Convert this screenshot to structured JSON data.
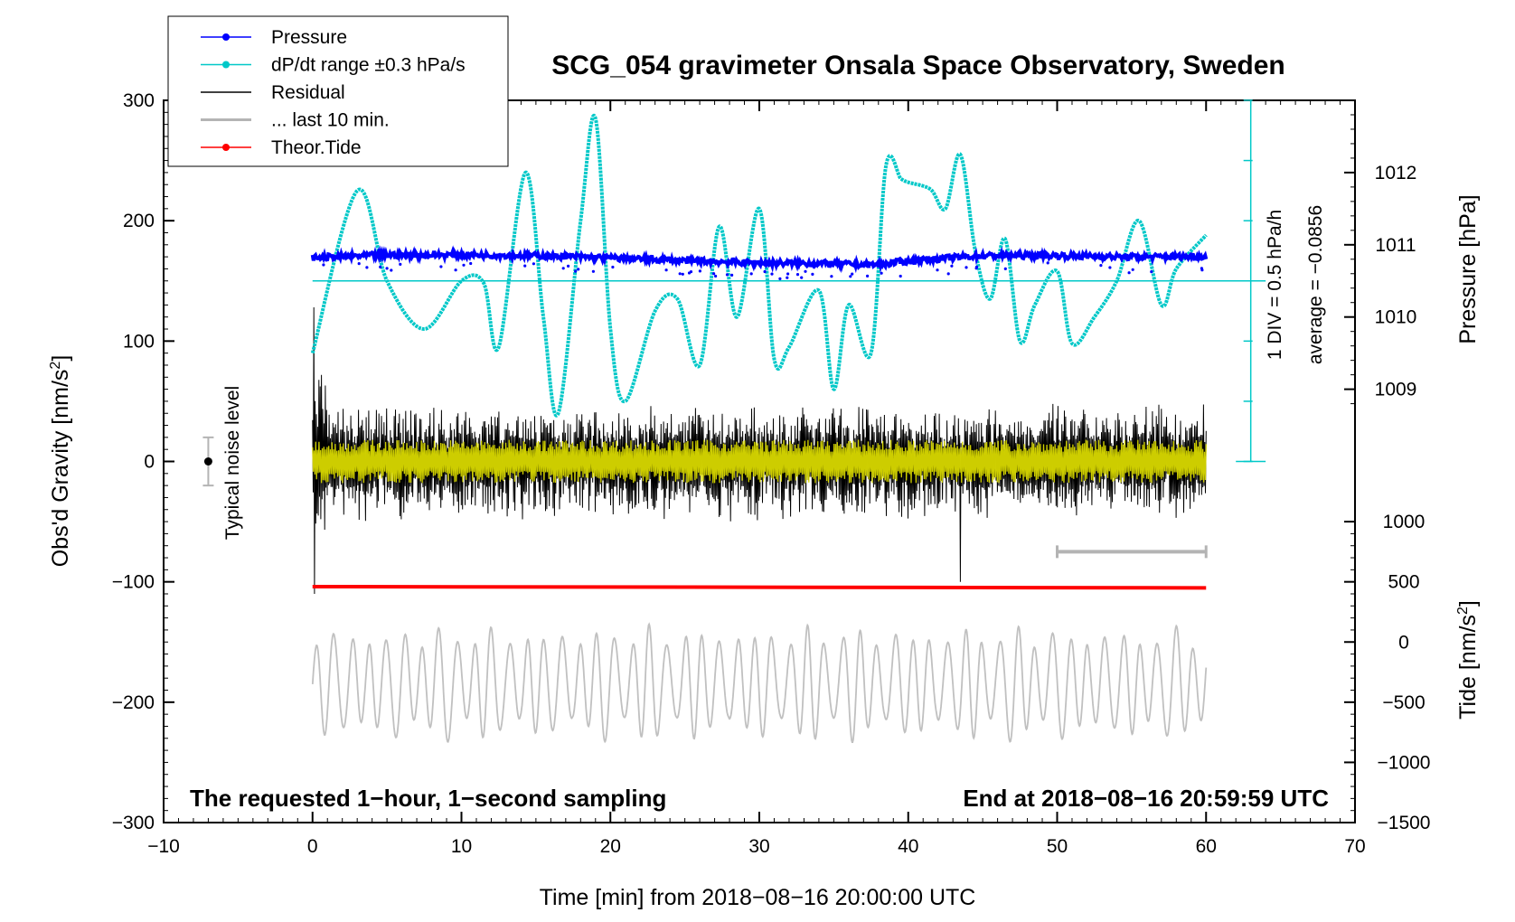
{
  "chart_data": {
    "type": "line",
    "title": "SCG_054 gravimeter Onsala Space Observatory, Sweden",
    "xlabel": "Time [min] from 2018−08−16 20:00:00 UTC",
    "ylabel_left": "Obs'd Gravity [nm/s²]",
    "ylabel_left_main": "Obs'd Gravity [nm/s",
    "ylabel_left_sup": "2",
    "ylabel_left_end": "]",
    "ylabel_pressure": "Pressure [hPa]",
    "ylabel_tide_main": "Tide [nm/s",
    "ylabel_tide_sup": "2",
    "ylabel_tide_end": "]",
    "xlim": [
      -10,
      70
    ],
    "ylim": [
      -300,
      300
    ],
    "x_ticks": [
      -10,
      0,
      10,
      20,
      30,
      40,
      50,
      60,
      70
    ],
    "x_tick_labels": [
      "−10",
      "0",
      "10",
      "20",
      "30",
      "40",
      "50",
      "60",
      "70"
    ],
    "y_ticks": [
      300,
      200,
      100,
      0,
      -100,
      -200,
      -300
    ],
    "y_tick_labels": [
      "300",
      "200",
      "100",
      "0",
      "−100",
      "−200",
      "−300"
    ],
    "pressure_ticks": [
      1012,
      1011,
      1010,
      1009
    ],
    "pressure_tick_labels": [
      "1012",
      "1011",
      "1010",
      "1009"
    ],
    "tide_ticks": [
      1000,
      500,
      0,
      -500,
      -1000,
      -1500
    ],
    "tide_tick_labels": [
      "1000",
      "500",
      "0",
      "−500",
      "−1000",
      "−1500"
    ],
    "pressure_hpa": {
      "start": 1010.85,
      "mid": 1010.75,
      "end": 1010.85,
      "points_min": [
        0,
        5,
        10,
        15,
        20,
        25,
        30,
        35,
        38,
        40,
        45,
        50,
        55,
        60
      ],
      "values": [
        1010.82,
        1010.86,
        1010.86,
        1010.85,
        1010.82,
        1010.78,
        1010.75,
        1010.74,
        1010.72,
        1010.78,
        1010.85,
        1010.85,
        1010.83,
        1010.84
      ]
    },
    "dpdt": {
      "note_div": "1 DIV = 0.5 hPa/h",
      "note_avg": "average = −0.0856",
      "x_min": [
        0,
        3,
        5,
        7.5,
        10,
        11.5,
        12.5,
        14.3,
        15.5,
        16.5,
        18,
        19,
        20,
        21,
        23,
        24.5,
        26,
        27.3,
        28.5,
        30,
        31,
        32,
        34,
        35,
        36,
        37.5,
        38.5,
        39.5,
        40,
        41.5,
        42.5,
        43.5,
        44.5,
        45.5,
        46.5,
        47.5,
        48.5,
        50,
        51,
        52.5,
        54,
        55.5,
        57,
        58,
        60
      ],
      "values": [
        90,
        225,
        150,
        110,
        150,
        148,
        95,
        240,
        120,
        40,
        200,
        285,
        110,
        50,
        125,
        135,
        80,
        195,
        120,
        210,
        85,
        95,
        142,
        60,
        130,
        90,
        245,
        235,
        232,
        226,
        210,
        255,
        175,
        135,
        185,
        100,
        130,
        158,
        98,
        120,
        150,
        200,
        130,
        160,
        188
      ],
      "ref_line_gravity": 150,
      "scale_top": 300,
      "scale_bottom": 0
    },
    "residual": {
      "amplitude_nm_s2": 50,
      "spike_minute": 43.5,
      "spike_min": -100,
      "spike_max": 95,
      "start_max": 128,
      "start_min": -110
    },
    "last_10_min": {
      "from_min": 50,
      "to_min": 60,
      "level": -75
    },
    "theor_tide": {
      "gravity_level": -104
    },
    "grey_trace": {
      "center": -185,
      "amplitude": 50
    },
    "noise_level": {
      "x_min": -7,
      "y_center": 0,
      "y_lo": -20,
      "y_hi": 20,
      "label": "Typical noise level"
    },
    "legend": [
      {
        "label": "Pressure",
        "color": "#0000ff",
        "marker": true
      },
      {
        "label": "dP/dt range ±0.3 hPa/s",
        "color": "#00c8c8",
        "marker": true
      },
      {
        "label": "Residual",
        "color": "#000000",
        "marker": false
      },
      {
        "label": "... last 10 min.",
        "color": "#b4b4b4",
        "marker": false
      },
      {
        "label": "Theor.Tide",
        "color": "#ff0000",
        "marker": true
      }
    ],
    "note_left": "The requested 1−hour, 1−second sampling",
    "note_right": "End at 2018−08−16 20:59:59 UTC"
  },
  "colors": {
    "pressure": "#0000ff",
    "dpdt": "#00c8c8",
    "residual": "#000000",
    "residual_overlay": "#d8d800",
    "last10": "#b4b4b4",
    "tide": "#ff0000",
    "grey_trace": "#c0c0c0"
  }
}
